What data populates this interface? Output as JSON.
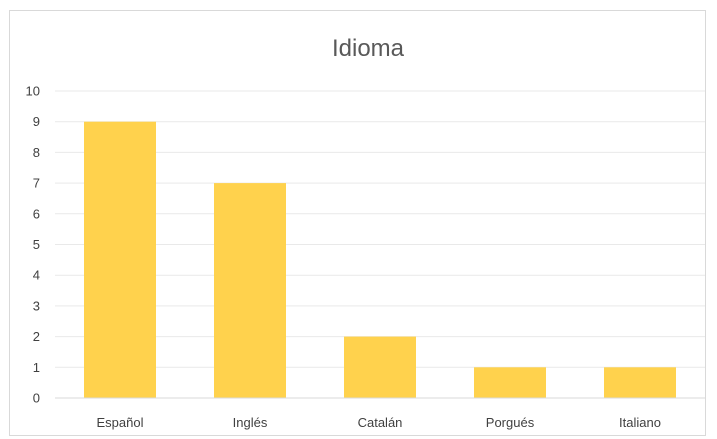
{
  "chart_data": {
    "type": "bar",
    "title": "Idioma",
    "categories": [
      "Español",
      "Inglés",
      "Catalán",
      "Porgués",
      "Italiano"
    ],
    "values": [
      9,
      7,
      2,
      1,
      1
    ],
    "ylim": [
      0,
      10
    ],
    "yticks": [
      "0",
      "1",
      "2",
      "3",
      "4",
      "5",
      "6",
      "7",
      "8",
      "9",
      "10"
    ],
    "xlabel": "",
    "ylabel": "",
    "grid": true,
    "legend": "none",
    "bar_color": "#ffd24d"
  }
}
